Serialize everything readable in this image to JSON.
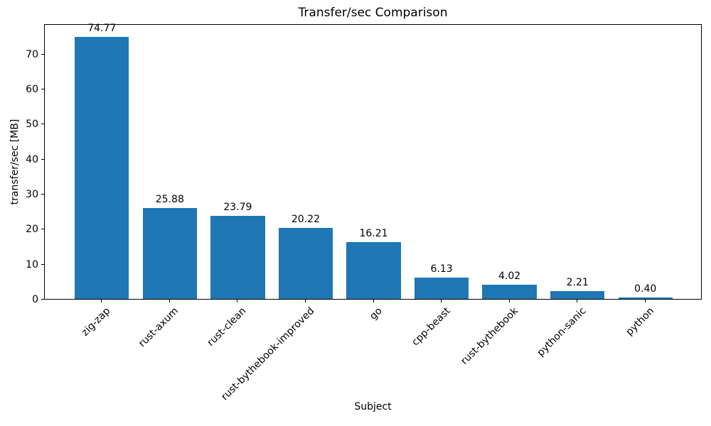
{
  "chart_data": {
    "type": "bar",
    "title": "Transfer/sec Comparison",
    "xlabel": "Subject",
    "ylabel": "transfer/sec [MB]",
    "categories": [
      "zig-zap",
      "rust-axum",
      "rust-clean",
      "rust-bythebook-improved",
      "go",
      "cpp-beast",
      "rust-bythebook",
      "python-sanic",
      "python"
    ],
    "values": [
      74.77,
      25.88,
      23.79,
      20.22,
      16.21,
      6.13,
      4.02,
      2.21,
      0.4
    ],
    "value_labels": [
      "74.77",
      "25.88",
      "23.79",
      "20.22",
      "16.21",
      "6.13",
      "4.02",
      "2.21",
      "0.40"
    ],
    "ylim": [
      0,
      78.7
    ],
    "yticks": [
      0,
      10,
      20,
      30,
      40,
      50,
      60,
      70
    ],
    "ytick_labels": [
      "0",
      "10",
      "20",
      "30",
      "40",
      "50",
      "60",
      "70"
    ],
    "bar_color": "#1f77b4",
    "grid": false,
    "legend": null
  }
}
